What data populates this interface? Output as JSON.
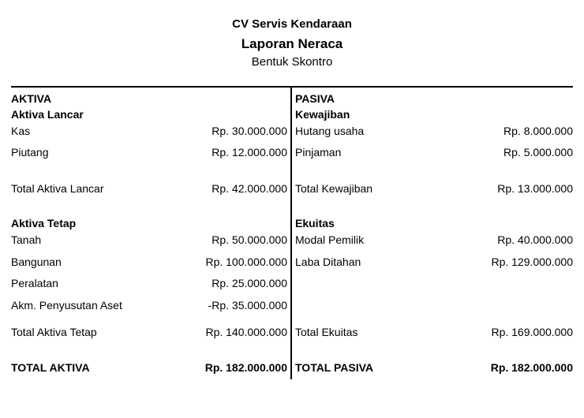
{
  "header": {
    "company": "CV Servis Kendaraan",
    "title": "Laporan Neraca",
    "subtitle": "Bentuk Skontro"
  },
  "aktiva": {
    "heading": "AKTIVA",
    "lancar": {
      "heading": "Aktiva Lancar",
      "items": [
        {
          "label": "Kas",
          "amount": "Rp. 30.000.000"
        },
        {
          "label": "Piutang",
          "amount": "Rp. 12.000.000"
        }
      ],
      "total_label": "Total Aktiva Lancar",
      "total_amount": "Rp. 42.000.000"
    },
    "tetap": {
      "heading": "Aktiva Tetap",
      "items": [
        {
          "label": "Tanah",
          "amount": "Rp. 50.000.000"
        },
        {
          "label": "Bangunan",
          "amount": "Rp. 100.000.000"
        },
        {
          "label": "Peralatan",
          "amount": "Rp. 25.000.000"
        },
        {
          "label": "Akm. Penyusutan Aset",
          "amount": "-Rp. 35.000.000"
        }
      ],
      "total_label": "Total Aktiva Tetap",
      "total_amount": "Rp. 140.000.000"
    },
    "grand_label": "TOTAL AKTIVA",
    "grand_amount": "Rp. 182.000.000"
  },
  "pasiva": {
    "heading": "PASIVA",
    "kewajiban": {
      "heading": "Kewajiban",
      "items": [
        {
          "label": "Hutang usaha",
          "amount": "Rp. 8.000.000"
        },
        {
          "label": "Pinjaman",
          "amount": "Rp. 5.000.000"
        }
      ],
      "total_label": "Total Kewajiban",
      "total_amount": "Rp. 13.000.000"
    },
    "ekuitas": {
      "heading": "Ekuitas",
      "items": [
        {
          "label": "Modal Pemilik",
          "amount": "Rp. 40.000.000"
        },
        {
          "label": "Laba Ditahan",
          "amount": "Rp. 129.000.000"
        }
      ],
      "total_label": "Total Ekuitas",
      "total_amount": "Rp. 169.000.000"
    },
    "grand_label": "TOTAL PASIVA",
    "grand_amount": "Rp. 182.000.000"
  }
}
